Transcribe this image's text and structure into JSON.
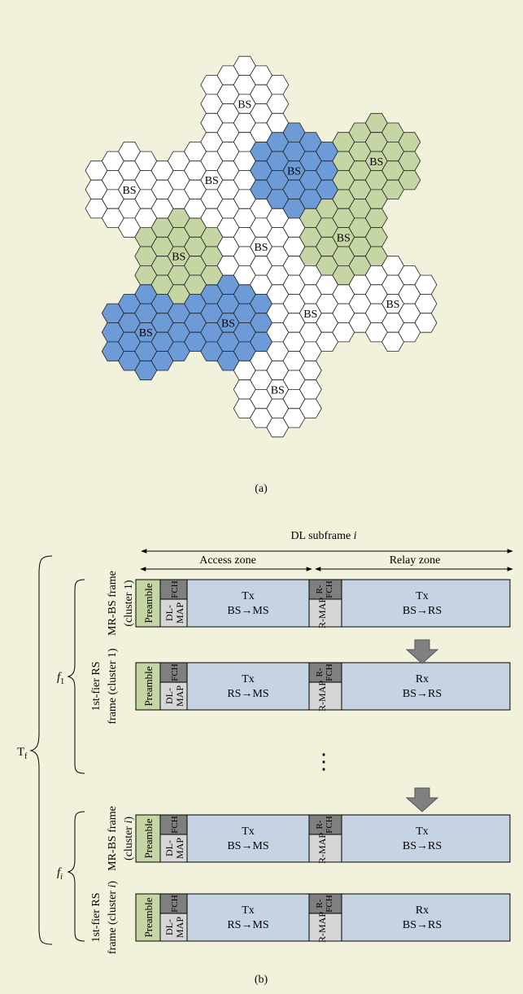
{
  "colors": {
    "background": "#f2f2dc",
    "cell_white": "#ffffff",
    "cell_blue": "#6c9bd8",
    "cell_green": "#c5d5a4",
    "frame_body": "#c6d3e2",
    "preamble": "#c5d5a4",
    "fch": "#7f7f7f",
    "map": "#d6d6d6",
    "arrow": "#808080"
  },
  "figure_a": {
    "caption": "(a)",
    "clusters": [
      {
        "label": "BS",
        "fill": "white"
      },
      {
        "label": "BS",
        "fill": "blue"
      },
      {
        "label": "BS",
        "fill": "green"
      },
      {
        "label": "BS",
        "fill": "white"
      },
      {
        "label": "BS",
        "fill": "blue"
      },
      {
        "label": "BS",
        "fill": "green"
      },
      {
        "label": "BS",
        "fill": "white"
      },
      {
        "label": "BS",
        "fill": "blue"
      },
      {
        "label": "BS",
        "fill": "green"
      },
      {
        "label": "BS",
        "fill": "white"
      },
      {
        "label": "BS",
        "fill": "white"
      },
      {
        "label": "BS",
        "fill": "white"
      },
      {
        "label": "BS",
        "fill": "white"
      }
    ]
  },
  "figure_b": {
    "caption": "(b)",
    "subframe_label": "DL subframe ",
    "subframe_index": "i",
    "access_zone": "Access zone",
    "relay_zone": "Relay zone",
    "tf_label": "T",
    "tf_sub": "f",
    "f1_label": "f",
    "f1_sub": "1",
    "fi_label": "f",
    "fi_sub": "i",
    "ellipsis": "⋮",
    "frames": [
      {
        "name": "MR-BS frame",
        "cluster_pre": "(cluster ",
        "cluster_id": "1",
        "cluster_post": ")",
        "preamble": "Preamble",
        "fch": "FCH",
        "dlmap": "DL-MAP",
        "rfch": "R-FCH",
        "rmap": "R-MAP",
        "access_mode": "Tx",
        "access_link": "BS→MS",
        "relay_mode": "Tx",
        "relay_link": "BS→RS"
      },
      {
        "name": "1st-fier RS",
        "name2": "frame (cluster ",
        "cluster_id": "1",
        "cluster_post": ")",
        "preamble": "Preamble",
        "fch": "FCH",
        "dlmap": "DL-MAP",
        "rfch": "R-FCH",
        "rmap": "R-MAP",
        "access_mode": "Tx",
        "access_link": "RS→MS",
        "relay_mode": "Rx",
        "relay_link": "BS→RS"
      },
      {
        "name": "MR-BS frame",
        "cluster_pre": "(cluster ",
        "cluster_id": "i",
        "cluster_post": ")",
        "preamble": "Preamble",
        "fch": "FCH",
        "dlmap": "DL-MAP",
        "rfch": "R-FCH",
        "rmap": "R-MAP",
        "access_mode": "Tx",
        "access_link": "BS→MS",
        "relay_mode": "Tx",
        "relay_link": "BS→RS"
      },
      {
        "name": "1st-fier RS",
        "name2": "frame (cluster ",
        "cluster_id": "i",
        "cluster_post": ")",
        "preamble": "Preamble",
        "fch": "FCH",
        "dlmap": "DL-MAP",
        "rfch": "R-FCH",
        "rmap": "R-MAP",
        "access_mode": "Tx",
        "access_link": "RS→MS",
        "relay_mode": "Rx",
        "relay_link": "BS→RS"
      }
    ]
  }
}
